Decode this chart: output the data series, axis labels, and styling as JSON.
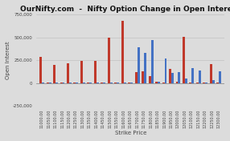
{
  "title": "OurNifty.com  -  Nifty Option Change in Open Interest",
  "xlabel": "Strike Price",
  "ylabel": "Open Interest",
  "background_color": "#dcdcdc",
  "plot_background": "#dcdcdc",
  "ylim": [
    -250000,
    750000
  ],
  "yticks": [
    -250000,
    0,
    250000,
    500000,
    750000
  ],
  "strike_prices": [
    "11000.00",
    "11050.00",
    "11100.00",
    "11150.00",
    "11200.00",
    "11250.00",
    "11300.00",
    "11350.00",
    "11400.00",
    "11450.00",
    "11500.00",
    "11550.00",
    "11600.00",
    "11650.00",
    "11700.00",
    "11750.00",
    "11800.00",
    "11850.00",
    "11900.00",
    "11950.00",
    "12000.00",
    "12050.00",
    "12100.00",
    "12150.00",
    "12200.00",
    "12250.00",
    "12300.00"
  ],
  "call_oi": [
    290000,
    3000,
    195000,
    5000,
    215000,
    3000,
    245000,
    5000,
    240000,
    8000,
    495000,
    3000,
    680000,
    8000,
    120000,
    130000,
    75000,
    10000,
    5000,
    155000,
    10000,
    505000,
    5000,
    5000,
    3000,
    205000,
    5000
  ],
  "put_oi": [
    3000,
    3000,
    8000,
    3000,
    3000,
    3000,
    3000,
    3000,
    3000,
    8000,
    8000,
    3000,
    3000,
    3000,
    390000,
    330000,
    470000,
    10000,
    265000,
    110000,
    115000,
    50000,
    160000,
    140000,
    3000,
    35000,
    130000
  ],
  "call_color": "#c0392b",
  "put_color": "#4472c4",
  "bar_width": 0.35,
  "title_fontsize": 6.5,
  "axis_fontsize": 5,
  "tick_fontsize": 3.5
}
